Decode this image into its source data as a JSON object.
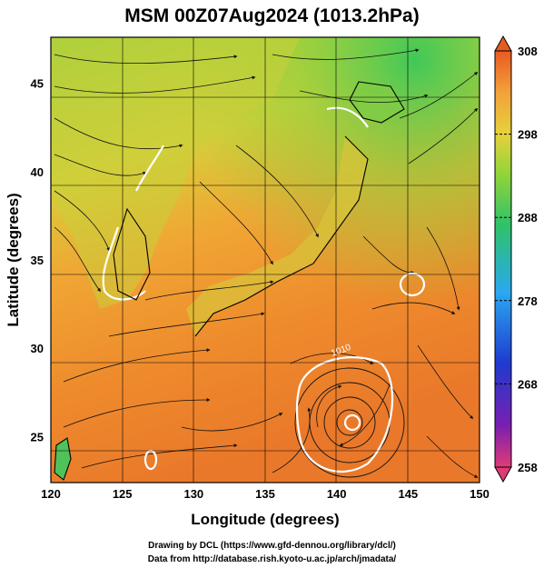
{
  "title": "MSM 00Z07Aug2024 (1013.2hPa)",
  "credits": {
    "line1": "Drawing by DCL (https://www.gfd-dennou.org/library/dcl/)",
    "line2": "Data from http://database.rish.kyoto-u.ac.jp/arch/jmadata/"
  },
  "chart_data": {
    "type": "heatmap",
    "xlabel": "Longitude (degrees)",
    "ylabel": "Latitude  (degrees)",
    "xlim": [
      120,
      150
    ],
    "ylim": [
      22.4,
      47.6
    ],
    "xticks": [
      "120",
      "125",
      "130",
      "135",
      "140",
      "145",
      "150"
    ],
    "yticks": [
      "25",
      "30",
      "35",
      "40",
      "45"
    ],
    "grid": true,
    "overlays": [
      "streamlines",
      "white contour 1010",
      "coastlines"
    ],
    "contour_label": "1010",
    "typhoon_center": {
      "lon": 141.2,
      "lat": 26.5
    },
    "colorbar": {
      "min": 258,
      "max": 308,
      "ticks": [
        "308",
        "298",
        "288",
        "278",
        "268",
        "258"
      ],
      "tick_values": [
        308,
        298,
        288,
        278,
        268,
        258
      ],
      "colors": [
        "#e03b76",
        "#7a1fb0",
        "#1f3ad0",
        "#2aa9f0",
        "#2ec26a",
        "#8ed43a",
        "#e6d23a",
        "#f2a23a",
        "#e85a22"
      ]
    }
  }
}
